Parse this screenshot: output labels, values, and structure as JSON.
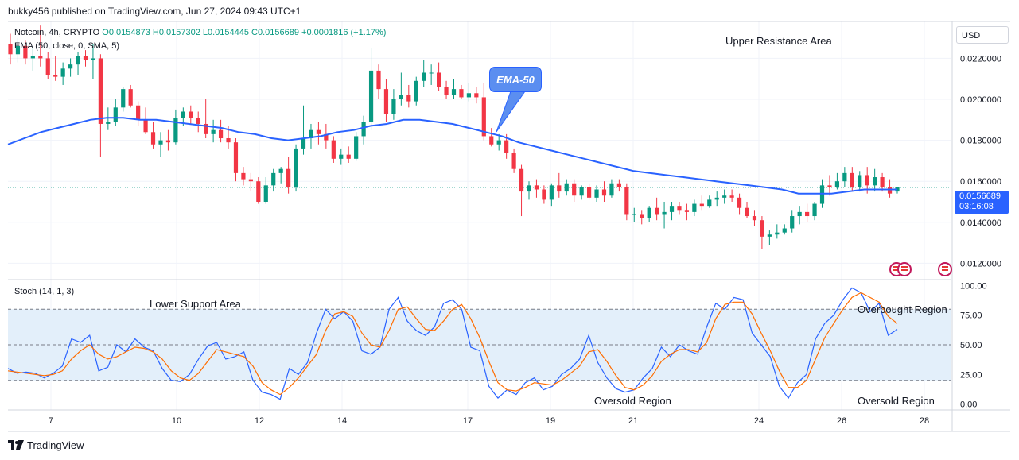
{
  "header": {
    "attribution": "bukky456 published on TradingView.com, Jun 27, 2024 09:43 UTC+1"
  },
  "legend": {
    "symbol": "Notcoin, 4h, CRYPTO",
    "ohlc": "O0.0154873 H0.0157302 L0.0154445 C0.0156689 +0.0001816 (+1.17%)",
    "ema": "EMA (50, close, 0, SMA, 5)",
    "stoch": "Stoch (14, 1, 3)"
  },
  "price_axis": {
    "currency": "USD",
    "last_price": "0.0156689",
    "countdown": "03:16:08"
  },
  "annotations": {
    "upper_resistance": "Upper Resistance Area",
    "lower_support": "Lower Support Area",
    "ema_callout": "EMA-50",
    "overbought": "Overbought Region",
    "oversold_1": "Oversold Region",
    "oversold_2": "Oversold Region"
  },
  "footer": {
    "brand": "TradingView"
  },
  "colors": {
    "up": "#089981",
    "down": "#f23645",
    "ema": "#2962ff",
    "stoch_k": "#2962ff",
    "stoch_d": "#ff6d00",
    "band": "#e3effa"
  },
  "chart_data": [
    {
      "type": "candlestick",
      "title": "Notcoin, 4h, CRYPTO",
      "x_ticks": [
        "7",
        "10",
        "12",
        "14",
        "17",
        "19",
        "21",
        "24",
        "26",
        "28"
      ],
      "y_ticks": [
        "0.0220000",
        "0.0200000",
        "0.0180000",
        "0.0160000",
        "0.0140000",
        "0.0120000"
      ],
      "ylim": [
        0.0112,
        0.0238
      ],
      "ohlc": [
        [
          0.0227,
          0.0232,
          0.0217,
          0.0222
        ],
        [
          0.0222,
          0.023,
          0.0218,
          0.0226
        ],
        [
          0.0226,
          0.0229,
          0.0217,
          0.022
        ],
        [
          0.022,
          0.0226,
          0.0214,
          0.0221
        ],
        [
          0.0221,
          0.0236,
          0.0216,
          0.022
        ],
        [
          0.022,
          0.0223,
          0.021,
          0.0212
        ],
        [
          0.0212,
          0.0221,
          0.0209,
          0.0211
        ],
        [
          0.0211,
          0.0218,
          0.0207,
          0.0215
        ],
        [
          0.0215,
          0.022,
          0.0211,
          0.0217
        ],
        [
          0.0217,
          0.0223,
          0.0212,
          0.0221
        ],
        [
          0.0221,
          0.0224,
          0.0216,
          0.0219
        ],
        [
          0.0219,
          0.0227,
          0.021,
          0.022
        ],
        [
          0.022,
          0.0222,
          0.0172,
          0.0188
        ],
        [
          0.0188,
          0.0196,
          0.0185,
          0.0189
        ],
        [
          0.0189,
          0.02,
          0.0187,
          0.0196
        ],
        [
          0.0196,
          0.0206,
          0.0194,
          0.0205
        ],
        [
          0.0205,
          0.0207,
          0.0196,
          0.0197
        ],
        [
          0.0197,
          0.0199,
          0.0187,
          0.019
        ],
        [
          0.019,
          0.0196,
          0.0183,
          0.0184
        ],
        [
          0.0184,
          0.0189,
          0.0176,
          0.0178
        ],
        [
          0.0178,
          0.0184,
          0.0172,
          0.018
        ],
        [
          0.018,
          0.0185,
          0.0175,
          0.0179
        ],
        [
          0.0179,
          0.0195,
          0.0178,
          0.0191
        ],
        [
          0.0191,
          0.0196,
          0.0187,
          0.0194
        ],
        [
          0.0194,
          0.0197,
          0.0188,
          0.0191
        ],
        [
          0.0191,
          0.0194,
          0.0184,
          0.0188
        ],
        [
          0.0188,
          0.02,
          0.0181,
          0.0183
        ],
        [
          0.0183,
          0.019,
          0.0179,
          0.0185
        ],
        [
          0.0185,
          0.019,
          0.0179,
          0.0181
        ],
        [
          0.0181,
          0.0187,
          0.0176,
          0.0179
        ],
        [
          0.0179,
          0.0181,
          0.016,
          0.0164
        ],
        [
          0.0164,
          0.0167,
          0.0158,
          0.0161
        ],
        [
          0.0161,
          0.0164,
          0.0155,
          0.016
        ],
        [
          0.016,
          0.0162,
          0.0149,
          0.015
        ],
        [
          0.015,
          0.0162,
          0.0149,
          0.0158
        ],
        [
          0.0158,
          0.0166,
          0.0155,
          0.0164
        ],
        [
          0.0164,
          0.0167,
          0.0159,
          0.0166
        ],
        [
          0.0166,
          0.0172,
          0.0154,
          0.0157
        ],
        [
          0.0157,
          0.0178,
          0.0155,
          0.0176
        ],
        [
          0.0176,
          0.0197,
          0.0173,
          0.0181
        ],
        [
          0.0181,
          0.0188,
          0.0176,
          0.0185
        ],
        [
          0.0185,
          0.0189,
          0.0178,
          0.0183
        ],
        [
          0.0183,
          0.0188,
          0.0176,
          0.018
        ],
        [
          0.018,
          0.0182,
          0.0169,
          0.0171
        ],
        [
          0.0171,
          0.0176,
          0.0168,
          0.0173
        ],
        [
          0.0173,
          0.0177,
          0.0169,
          0.0171
        ],
        [
          0.0171,
          0.0184,
          0.017,
          0.0182
        ],
        [
          0.0182,
          0.0192,
          0.0178,
          0.0189
        ],
        [
          0.0189,
          0.0225,
          0.0185,
          0.0214
        ],
        [
          0.0214,
          0.0217,
          0.02,
          0.0205
        ],
        [
          0.0205,
          0.021,
          0.0189,
          0.0193
        ],
        [
          0.0193,
          0.0205,
          0.019,
          0.02
        ],
        [
          0.02,
          0.0213,
          0.0197,
          0.0202
        ],
        [
          0.0202,
          0.0207,
          0.0196,
          0.0199
        ],
        [
          0.0199,
          0.0211,
          0.0197,
          0.0209
        ],
        [
          0.0209,
          0.0219,
          0.0206,
          0.0213
        ],
        [
          0.0213,
          0.0217,
          0.0207,
          0.0213
        ],
        [
          0.0213,
          0.0218,
          0.0204,
          0.0206
        ],
        [
          0.0206,
          0.0209,
          0.02,
          0.0202
        ],
        [
          0.0202,
          0.021,
          0.02,
          0.0205
        ],
        [
          0.0205,
          0.0207,
          0.02,
          0.0201
        ],
        [
          0.0201,
          0.0208,
          0.0199,
          0.0203
        ],
        [
          0.0203,
          0.0206,
          0.0198,
          0.0201
        ],
        [
          0.0201,
          0.0208,
          0.018,
          0.0182
        ],
        [
          0.0182,
          0.0186,
          0.0177,
          0.0178
        ],
        [
          0.0178,
          0.0183,
          0.0175,
          0.018
        ],
        [
          0.018,
          0.0183,
          0.0171,
          0.0174
        ],
        [
          0.0174,
          0.0176,
          0.0164,
          0.0166
        ],
        [
          0.0166,
          0.0168,
          0.0143,
          0.0155
        ],
        [
          0.0155,
          0.016,
          0.0151,
          0.0158
        ],
        [
          0.0158,
          0.0161,
          0.0152,
          0.0156
        ],
        [
          0.0156,
          0.0158,
          0.0149,
          0.0151
        ],
        [
          0.0151,
          0.0159,
          0.0148,
          0.0158
        ],
        [
          0.0158,
          0.0164,
          0.0152,
          0.0155
        ],
        [
          0.0155,
          0.0161,
          0.0153,
          0.0159
        ],
        [
          0.0159,
          0.0161,
          0.015,
          0.0153
        ],
        [
          0.0153,
          0.0158,
          0.0151,
          0.0157
        ],
        [
          0.0157,
          0.0159,
          0.0151,
          0.0152
        ],
        [
          0.0152,
          0.0158,
          0.015,
          0.0156
        ],
        [
          0.0156,
          0.016,
          0.015,
          0.0153
        ],
        [
          0.0153,
          0.0161,
          0.0152,
          0.0159
        ],
        [
          0.0159,
          0.0161,
          0.0155,
          0.0157
        ],
        [
          0.0157,
          0.0159,
          0.0141,
          0.0144
        ],
        [
          0.0144,
          0.0147,
          0.014,
          0.0144
        ],
        [
          0.0144,
          0.0146,
          0.0139,
          0.0142
        ],
        [
          0.0142,
          0.0148,
          0.014,
          0.0147
        ],
        [
          0.0147,
          0.0152,
          0.0141,
          0.0144
        ],
        [
          0.0144,
          0.015,
          0.0137,
          0.0145
        ],
        [
          0.0145,
          0.015,
          0.0141,
          0.0148
        ],
        [
          0.0148,
          0.015,
          0.0144,
          0.0146
        ],
        [
          0.0146,
          0.0149,
          0.0141,
          0.0145
        ],
        [
          0.0145,
          0.0151,
          0.0143,
          0.0149
        ],
        [
          0.0149,
          0.0153,
          0.0146,
          0.0148
        ],
        [
          0.0148,
          0.0153,
          0.0147,
          0.0151
        ],
        [
          0.0151,
          0.0155,
          0.0148,
          0.0152
        ],
        [
          0.0152,
          0.0156,
          0.0149,
          0.0153
        ],
        [
          0.0153,
          0.0156,
          0.015,
          0.0152
        ],
        [
          0.0152,
          0.0154,
          0.0144,
          0.0147
        ],
        [
          0.0147,
          0.015,
          0.0142,
          0.0143
        ],
        [
          0.0143,
          0.0146,
          0.0138,
          0.0141
        ],
        [
          0.0141,
          0.0143,
          0.0127,
          0.0133
        ],
        [
          0.0133,
          0.0136,
          0.0129,
          0.0134
        ],
        [
          0.0134,
          0.0139,
          0.0132,
          0.0135
        ],
        [
          0.0135,
          0.0139,
          0.0134,
          0.0137
        ],
        [
          0.0137,
          0.0146,
          0.0135,
          0.0143
        ],
        [
          0.0143,
          0.0148,
          0.0139,
          0.0145
        ],
        [
          0.0145,
          0.0149,
          0.014,
          0.0143
        ],
        [
          0.0143,
          0.015,
          0.0141,
          0.0149
        ],
        [
          0.0149,
          0.0161,
          0.0147,
          0.0158
        ],
        [
          0.0158,
          0.0163,
          0.0153,
          0.0157
        ],
        [
          0.0157,
          0.0164,
          0.0156,
          0.016
        ],
        [
          0.016,
          0.0167,
          0.0157,
          0.0164
        ],
        [
          0.0164,
          0.0167,
          0.0155,
          0.0157
        ],
        [
          0.0157,
          0.0165,
          0.0155,
          0.0163
        ],
        [
          0.0163,
          0.0167,
          0.0154,
          0.0158
        ],
        [
          0.0158,
          0.0166,
          0.0155,
          0.0162
        ],
        [
          0.0162,
          0.0164,
          0.0155,
          0.0157
        ],
        [
          0.0157,
          0.0161,
          0.0152,
          0.0154
        ],
        [
          0.0155,
          0.0157,
          0.0154,
          0.0157
        ]
      ],
      "ema50": [
        0.0178,
        0.0181,
        0.0184,
        0.0186,
        0.0188,
        0.019,
        0.0191,
        0.0191,
        0.019,
        0.019,
        0.0189,
        0.0188,
        0.0187,
        0.0186,
        0.0184,
        0.0183,
        0.0181,
        0.018,
        0.0181,
        0.0182,
        0.0184,
        0.0185,
        0.0187,
        0.0188,
        0.019,
        0.019,
        0.0189,
        0.0188,
        0.0186,
        0.0184,
        0.0182,
        0.0179,
        0.0177,
        0.0175,
        0.0173,
        0.0171,
        0.0169,
        0.0167,
        0.0165,
        0.0164,
        0.0163,
        0.0162,
        0.0161,
        0.016,
        0.0159,
        0.0158,
        0.0157,
        0.0156,
        0.0154,
        0.0154,
        0.0154,
        0.0155,
        0.0156,
        0.0156,
        0.0156
      ]
    },
    {
      "type": "line",
      "title": "Stoch (14, 1, 3)",
      "y_ticks": [
        "100.00",
        "75.00",
        "50.00",
        "25.00",
        "0.00"
      ],
      "ylim": [
        -5,
        105
      ],
      "levels": [
        80,
        50,
        20
      ],
      "series": [
        {
          "values": [
            30,
            26,
            27,
            26,
            22,
            26,
            32,
            55,
            52,
            58,
            28,
            31,
            50,
            44,
            55,
            48,
            45,
            30,
            20,
            19,
            25,
            38,
            49,
            52,
            38,
            40,
            44,
            20,
            10,
            8,
            4,
            30,
            25,
            35,
            60,
            80,
            72,
            78,
            70,
            45,
            42,
            48,
            80,
            90,
            70,
            62,
            58,
            65,
            85,
            88,
            80,
            48,
            45,
            15,
            5,
            12,
            8,
            18,
            22,
            12,
            15,
            25,
            30,
            38,
            58,
            35,
            22,
            13,
            10,
            12,
            22,
            30,
            48,
            40,
            50,
            45,
            42,
            65,
            85,
            80,
            90,
            88,
            60,
            50,
            40,
            15,
            5,
            18,
            25,
            55,
            68,
            75,
            88,
            98,
            94,
            78,
            85,
            58,
            63
          ]
        },
        {
          "values": [
            28,
            27,
            26,
            25,
            24,
            25,
            28,
            38,
            45,
            50,
            42,
            38,
            40,
            44,
            48,
            47,
            44,
            38,
            28,
            22,
            20,
            26,
            36,
            46,
            44,
            42,
            40,
            32,
            18,
            12,
            8,
            14,
            22,
            32,
            42,
            62,
            76,
            78,
            74,
            60,
            50,
            48,
            62,
            80,
            82,
            72,
            63,
            62,
            70,
            80,
            84,
            72,
            56,
            36,
            18,
            12,
            11,
            14,
            18,
            17,
            16,
            20,
            26,
            32,
            44,
            46,
            36,
            24,
            14,
            12,
            16,
            24,
            36,
            42,
            46,
            46,
            44,
            52,
            72,
            84,
            86,
            86,
            76,
            60,
            45,
            28,
            14,
            14,
            20,
            38,
            56,
            68,
            80,
            90,
            94,
            90,
            86,
            74,
            68
          ]
        }
      ]
    }
  ]
}
